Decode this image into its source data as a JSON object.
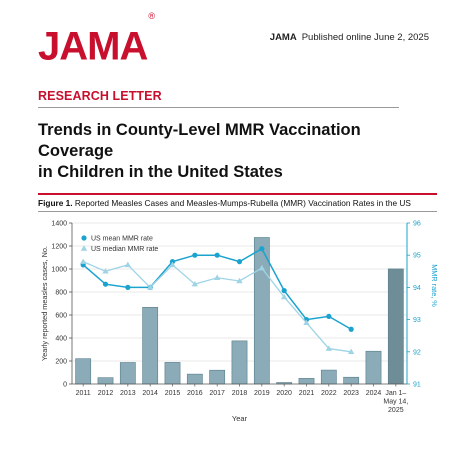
{
  "header": {
    "logo": "JAMA",
    "logo_mark": "®",
    "journal": "JAMA",
    "published": "Published online June 2, 2025"
  },
  "article": {
    "section": "RESEARCH LETTER",
    "title_line1": "Trends in County-Level MMR Vaccination Coverage",
    "title_line2": "in Children in the United States"
  },
  "figure": {
    "label": "Figure 1.",
    "caption": "Reported Measles Cases and Measles-Mumps-Rubella (MMR) Vaccination Rates in the US"
  },
  "colors": {
    "bar": "#8aabb7",
    "bar_stroke": "#5b7f8c",
    "bar_last": "#6f8d97",
    "mean": "#1ba3cf",
    "median": "#9fd4e6",
    "brand": "#c8102e"
  },
  "chart_data": {
    "type": "bar",
    "categories": [
      "2011",
      "2012",
      "2013",
      "2014",
      "2015",
      "2016",
      "2017",
      "2018",
      "2019",
      "2020",
      "2021",
      "2022",
      "2023",
      "2024",
      "Jan 1–May 14, 2025"
    ],
    "tick_labels": [
      [
        "2011"
      ],
      [
        "2012"
      ],
      [
        "2013"
      ],
      [
        "2014"
      ],
      [
        "2015"
      ],
      [
        "2016"
      ],
      [
        "2017"
      ],
      [
        "2018"
      ],
      [
        "2019"
      ],
      [
        "2020"
      ],
      [
        "2021"
      ],
      [
        "2022"
      ],
      [
        "2023"
      ],
      [
        "2024"
      ],
      [
        "Jan 1–",
        "May 14,",
        "2025"
      ]
    ],
    "cases": [
      220,
      55,
      187,
      667,
      188,
      86,
      120,
      375,
      1274,
      13,
      49,
      121,
      59,
      285,
      1001
    ],
    "xlabel": "Year",
    "ylabel": "Yearly reported measles cases, No.",
    "ylabel2": "MMR rate, %",
    "ylim": [
      0,
      1400
    ],
    "yticks": [
      0,
      200,
      400,
      600,
      800,
      1000,
      1200,
      1400
    ],
    "y2lim": [
      91,
      96
    ],
    "y2ticks": [
      91,
      92,
      93,
      94,
      95,
      96
    ],
    "series": [
      {
        "name": "US mean MMR rate",
        "marker": "circle",
        "values": [
          94.7,
          94.1,
          94.0,
          94.0,
          94.8,
          95.0,
          95.0,
          94.8,
          95.2,
          93.9,
          93.0,
          93.1,
          92.7,
          null,
          null
        ]
      },
      {
        "name": "US median MMR rate",
        "marker": "triangle",
        "values": [
          94.8,
          94.5,
          94.7,
          94.0,
          94.7,
          94.1,
          94.3,
          94.2,
          94.6,
          93.7,
          92.9,
          92.1,
          92.0,
          null,
          null
        ]
      }
    ],
    "legend": "top-left",
    "grid": true
  }
}
